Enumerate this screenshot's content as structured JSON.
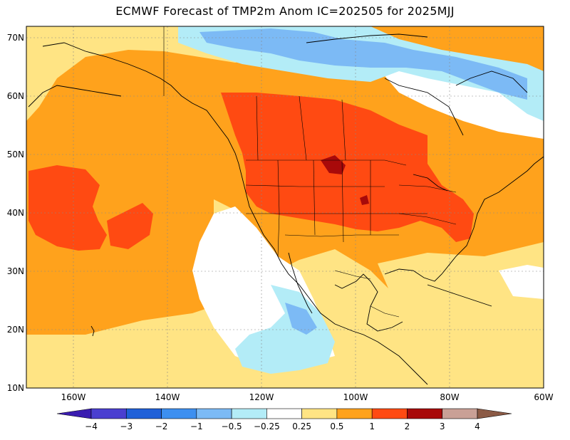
{
  "title": "ECMWF Forecast of TMP2m Anom IC=202505 for 2025MJJ",
  "lat_labels": [
    "70N",
    "60N",
    "50N",
    "40N",
    "30N",
    "20N",
    "10N"
  ],
  "lon_labels": [
    "160W",
    "140W",
    "120W",
    "100W",
    "80W",
    "60W"
  ],
  "colorbar": {
    "labels": [
      "−4",
      "−3",
      "−2",
      "−1",
      "−0.5",
      "−0.25",
      "0.25",
      "0.5",
      "1",
      "2",
      "3",
      "4"
    ],
    "colors": [
      "#3a1cb0",
      "#4a3fd0",
      "#1f60d8",
      "#3d8ff0",
      "#7cbaf5",
      "#b3ecf7",
      "#ffffff",
      "#ffe484",
      "#ffa21c",
      "#ff4a12",
      "#a80a0a",
      "#c9a096",
      "#8b5a45"
    ]
  },
  "colors": {
    "warm_light": "#ffe484",
    "warm_mid": "#ffa21c",
    "warm_strong": "#ff4a12",
    "warm_extreme": "#a80a0a",
    "cool_light": "#b3ecf7",
    "cool_mid": "#7cbaf5",
    "cool_strong": "#3d8ff0"
  }
}
